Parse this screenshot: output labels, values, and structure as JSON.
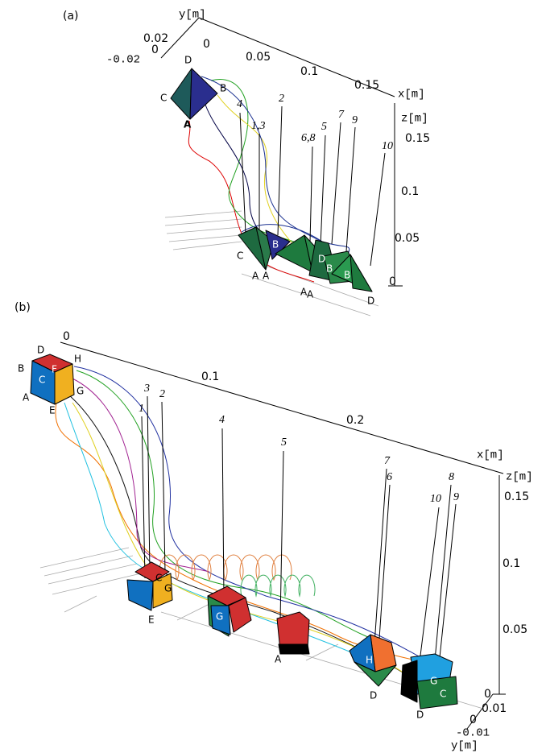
{
  "panels": [
    {
      "label": "(a)",
      "x_axis": {
        "title": "x[m]",
        "ticks": [
          "0",
          "0.05",
          "0.1",
          "0.15"
        ]
      },
      "y_axis": {
        "title": "y[m]",
        "ticks": [
          "0.02",
          "0",
          "-0.02"
        ]
      },
      "z_axis": {
        "title": "z[m]",
        "ticks": [
          "0.15",
          "0.1",
          "0.05",
          "0"
        ]
      },
      "start_vertices": [
        "D",
        "C",
        "B",
        "A"
      ],
      "trajectories": [
        "4",
        "2",
        "1,3",
        "6,8",
        "5",
        "7",
        "9",
        "10"
      ],
      "end_vertices": [
        "C",
        "B",
        "A",
        "A",
        "D",
        "B",
        "B",
        "A",
        "A",
        "D"
      ]
    },
    {
      "label": "(b)",
      "x_axis": {
        "title": "x[m]",
        "ticks": [
          "0",
          "0.1",
          "0.2"
        ]
      },
      "y_axis": {
        "title": "y[m]",
        "ticks": [
          "0.01",
          "0",
          "-0.01"
        ]
      },
      "z_axis": {
        "title": "z[m]",
        "ticks": [
          "0.15",
          "0.1",
          "0.05",
          "0"
        ]
      },
      "start_vertices": [
        "D",
        "H",
        "B",
        "F",
        "C",
        "G",
        "A",
        "E"
      ],
      "trajectories": [
        "3",
        "2",
        "1",
        "4",
        "5",
        "7",
        "6",
        "8",
        "10",
        "9"
      ],
      "end_vertices": [
        "C",
        "G",
        "E",
        "G",
        "A",
        "H",
        "D",
        "G",
        "C",
        "D"
      ]
    }
  ]
}
